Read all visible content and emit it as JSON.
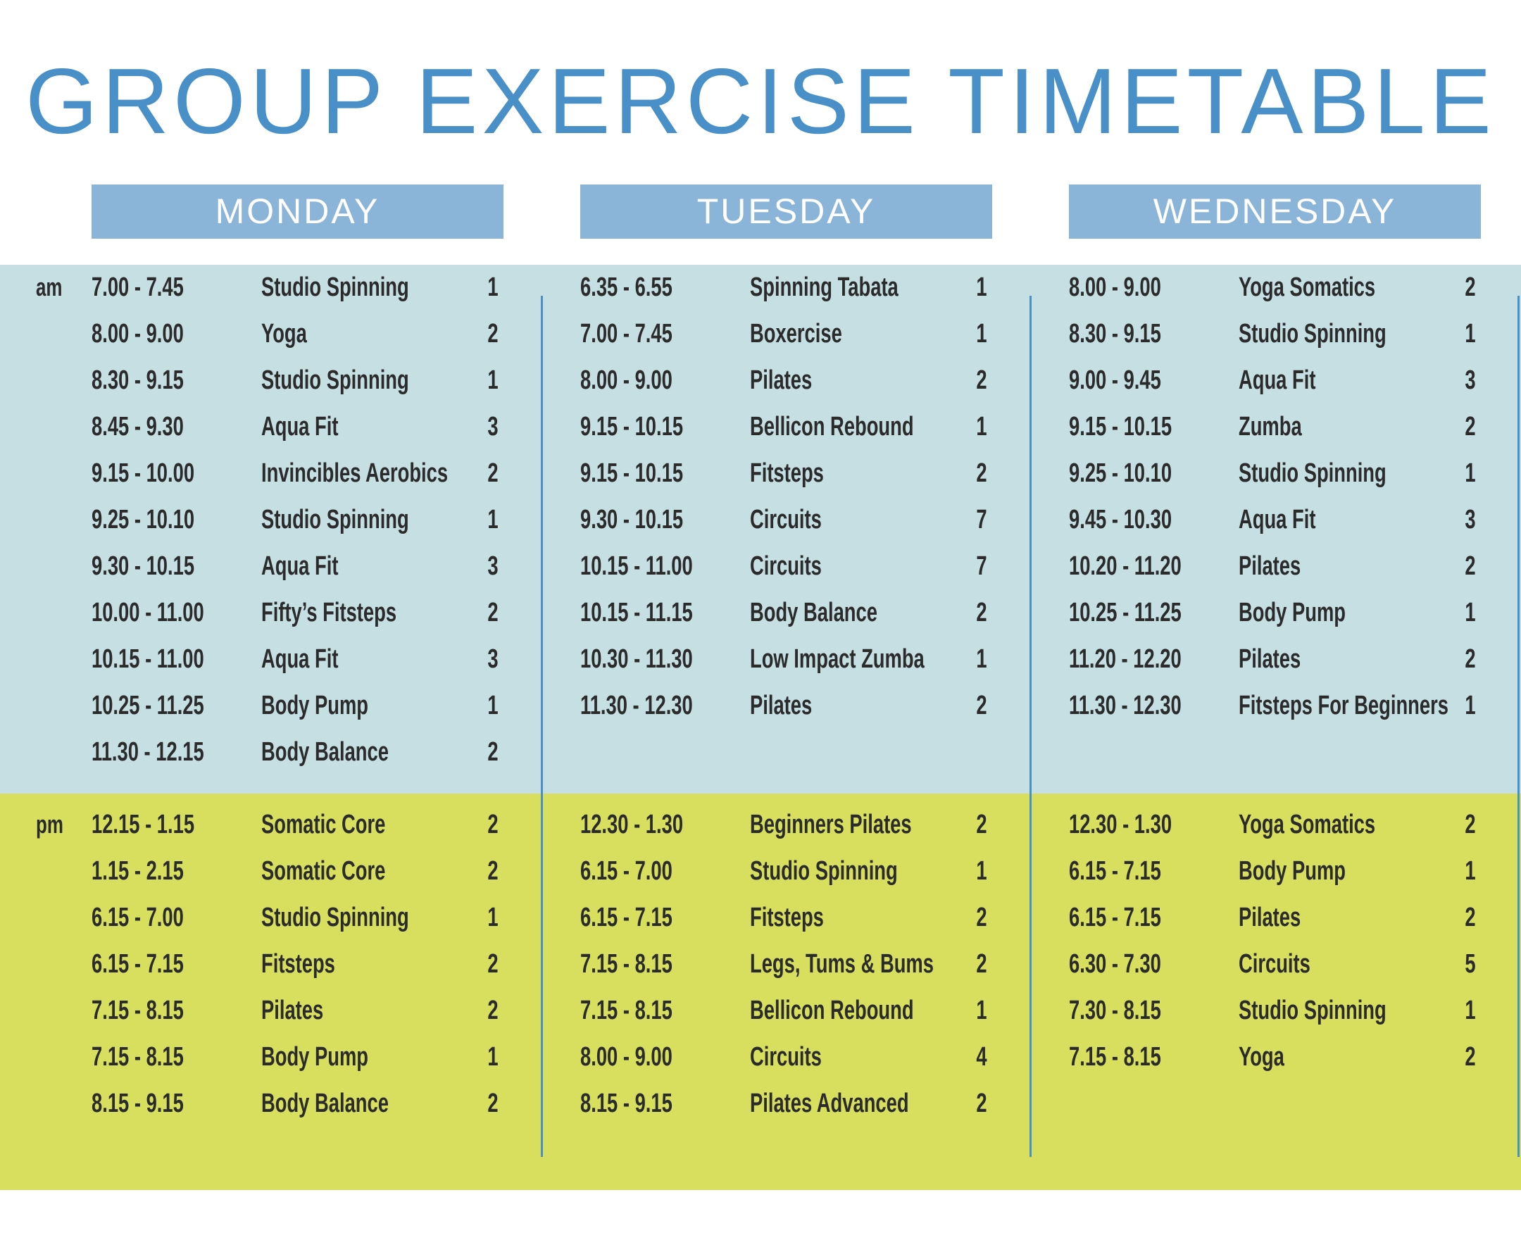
{
  "header": {
    "title": "GROUP EXERCISE TIMETABLE"
  },
  "periods": {
    "am": "am",
    "pm": "pm"
  },
  "days": [
    {
      "name": "MONDAY",
      "am": [
        [
          "7.00 - 7.45",
          "Studio Spinning",
          1
        ],
        [
          "8.00 - 9.00",
          "Yoga",
          2
        ],
        [
          "8.30 - 9.15",
          "Studio Spinning",
          1
        ],
        [
          "8.45 - 9.30",
          "Aqua Fit",
          3
        ],
        [
          "9.15 - 10.00",
          "Invincibles Aerobics",
          2
        ],
        [
          "9.25 - 10.10",
          "Studio Spinning",
          1
        ],
        [
          "9.30 - 10.15",
          "Aqua Fit",
          3
        ],
        [
          "10.00 - 11.00",
          "Fifty’s Fitsteps",
          2
        ],
        [
          "10.15 - 11.00",
          "Aqua Fit",
          3
        ],
        [
          "10.25 - 11.25",
          "Body Pump",
          1
        ],
        [
          "11.30 - 12.15",
          "Body Balance",
          2
        ]
      ],
      "pm": [
        [
          "12.15 - 1.15",
          "Somatic Core",
          2
        ],
        [
          "1.15 - 2.15",
          "Somatic Core",
          2
        ],
        [
          "6.15 - 7.00",
          "Studio Spinning",
          1
        ],
        [
          "6.15 - 7.15",
          "Fitsteps",
          2
        ],
        [
          "7.15 - 8.15",
          "Pilates",
          2
        ],
        [
          "7.15 - 8.15",
          "Body Pump",
          1
        ],
        [
          "8.15 - 9.15",
          "Body Balance",
          2
        ]
      ]
    },
    {
      "name": "TUESDAY",
      "am": [
        [
          "6.35 - 6.55",
          "Spinning Tabata",
          1
        ],
        [
          "7.00 - 7.45",
          "Boxercise",
          1
        ],
        [
          "8.00 - 9.00",
          "Pilates",
          2
        ],
        [
          "9.15 - 10.15",
          "Bellicon Rebound",
          1
        ],
        [
          "9.15 - 10.15",
          "Fitsteps",
          2
        ],
        [
          "9.30 - 10.15",
          "Circuits",
          7
        ],
        [
          "10.15 - 11.00",
          "Circuits",
          7
        ],
        [
          "10.15 - 11.15",
          "Body Balance",
          2
        ],
        [
          "10.30 - 11.30",
          "Low Impact Zumba",
          1
        ],
        [
          "11.30 - 12.30",
          "Pilates",
          2
        ]
      ],
      "pm": [
        [
          "12.30 - 1.30",
          "Beginners Pilates",
          2
        ],
        [
          "6.15 - 7.00",
          "Studio Spinning",
          1
        ],
        [
          "6.15 - 7.15",
          "Fitsteps",
          2
        ],
        [
          "7.15 - 8.15",
          "Legs, Tums & Bums",
          2
        ],
        [
          "7.15 - 8.15",
          "Bellicon Rebound",
          1
        ],
        [
          "8.00 - 9.00",
          "Circuits",
          4
        ],
        [
          "8.15 - 9.15",
          "Pilates Advanced",
          2
        ]
      ]
    },
    {
      "name": "WEDNESDAY",
      "am": [
        [
          "8.00 - 9.00",
          "Yoga Somatics",
          2
        ],
        [
          "8.30 - 9.15",
          "Studio Spinning",
          1
        ],
        [
          "9.00 - 9.45",
          "Aqua Fit",
          3
        ],
        [
          "9.15 - 10.15",
          "Zumba",
          2
        ],
        [
          "9.25 - 10.10",
          "Studio Spinning",
          1
        ],
        [
          "9.45 - 10.30",
          "Aqua Fit",
          3
        ],
        [
          "10.20 - 11.20",
          "Pilates",
          2
        ],
        [
          "10.25 - 11.25",
          "Body Pump",
          1
        ],
        [
          "11.20 - 12.20",
          "Pilates",
          2
        ],
        [
          "11.30 - 12.30",
          "Fitsteps For Beginners",
          1
        ]
      ],
      "pm": [
        [
          "12.30 - 1.30",
          "Yoga Somatics",
          2
        ],
        [
          "6.15 - 7.15",
          "Body Pump",
          1
        ],
        [
          "6.15 - 7.15",
          "Pilates",
          2
        ],
        [
          "6.30 - 7.30",
          "Circuits",
          5
        ],
        [
          "7.30 - 8.15",
          "Studio Spinning",
          1
        ],
        [
          "7.15 - 8.15",
          "Yoga",
          2
        ]
      ]
    }
  ]
}
